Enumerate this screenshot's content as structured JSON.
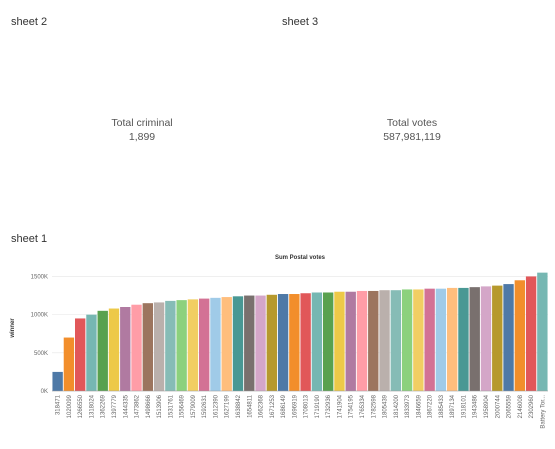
{
  "sheets": {
    "sheet2": {
      "title": "sheet 2",
      "kpi_label": "Total criminal",
      "kpi_value": "1,899"
    },
    "sheet3": {
      "title": "sheet 3",
      "kpi_label": "Total votes",
      "kpi_value": "587,981,119"
    },
    "sheet1": {
      "title": "sheet 1"
    }
  },
  "chart_data": {
    "type": "bar",
    "title": "Sum Postal votes",
    "ylabel": "winner",
    "xlabel": "",
    "ylim": [
      0,
      1650000
    ],
    "y_ticks": [
      0,
      500000,
      1000000,
      1500000
    ],
    "y_tick_labels": [
      "0K",
      "500K",
      "1000K",
      "1500K"
    ],
    "grid": true,
    "categories": [
      "318471",
      "1020099",
      "1266550",
      "1318024",
      "1362269",
      "1397779",
      "1444335",
      "1473862",
      "1498666",
      "1513906",
      "1531761",
      "1556469",
      "1579009",
      "1592631",
      "1612390",
      "1627199",
      "1638842",
      "1654811",
      "1662368",
      "1671253",
      "1686149",
      "1696919",
      "1708013",
      "1719190",
      "1732936",
      "1741904",
      "1754195",
      "1765334",
      "1782598",
      "1805439",
      "1814200",
      "1833973",
      "1846659",
      "1867220",
      "1885433",
      "1897134",
      "1918101",
      "1943486",
      "1958904",
      "2000744",
      "2065559",
      "2146008",
      "2302960",
      "Battery Tor..."
    ],
    "values": [
      250000,
      700000,
      950000,
      1000000,
      1050000,
      1080000,
      1100000,
      1130000,
      1150000,
      1160000,
      1180000,
      1190000,
      1200000,
      1210000,
      1220000,
      1230000,
      1240000,
      1250000,
      1250000,
      1260000,
      1270000,
      1270000,
      1280000,
      1290000,
      1290000,
      1300000,
      1300000,
      1310000,
      1310000,
      1320000,
      1320000,
      1330000,
      1330000,
      1340000,
      1340000,
      1350000,
      1350000,
      1360000,
      1370000,
      1380000,
      1400000,
      1450000,
      1500000,
      1550000
    ],
    "palette": [
      "#4e79a7",
      "#f28e2b",
      "#e15759",
      "#76b7b2",
      "#59a14f",
      "#edc948",
      "#b07aa1",
      "#ff9da7",
      "#9c755f",
      "#bab0ac",
      "#86bcb6",
      "#8cd17d",
      "#f1ce63",
      "#d37295",
      "#a0cbe8",
      "#ffbe7d",
      "#499894",
      "#79706e",
      "#d4a6c8",
      "#b6992d"
    ]
  }
}
